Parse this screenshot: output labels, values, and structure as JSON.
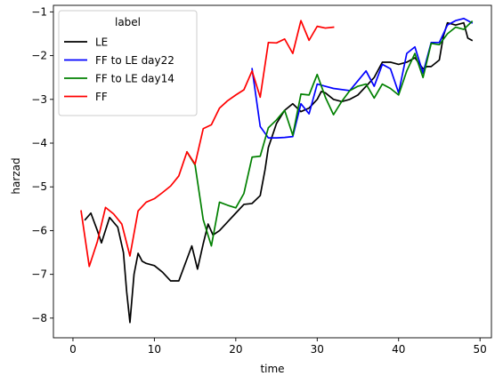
{
  "chart_data": {
    "type": "line",
    "title": "",
    "xlabel": "time",
    "ylabel": "harzad",
    "xlim": [
      -2.4,
      51.4
    ],
    "ylim": [
      -8.45,
      -0.85
    ],
    "xticks": [
      0,
      10,
      20,
      30,
      40,
      50
    ],
    "yticks": [
      -8,
      -7,
      -6,
      -5,
      -4,
      -3,
      -2,
      -1
    ],
    "grid": false,
    "legend": {
      "title": "label",
      "position": "top-left"
    },
    "series": [
      {
        "name": "LE",
        "color": "#000000",
        "x": [
          1.5,
          2.2,
          3.0,
          3.5,
          4.5,
          5.5,
          6.2,
          6.6,
          7.0,
          7.5,
          8.0,
          8.5,
          9.0,
          10.0,
          11.0,
          12.0,
          13.0,
          14.2,
          14.6,
          15.3,
          16.0,
          16.6,
          17.2,
          18.0,
          19.0,
          20.0,
          21.0,
          22.0,
          23.0,
          23.6,
          24.0,
          25.0,
          26.0,
          27.0,
          28.0,
          29.0,
          30.0,
          30.5,
          31.0,
          32.0,
          33.0,
          34.0,
          35.0,
          36.0,
          37.0,
          38.0,
          39.0,
          40.0,
          41.0,
          42.0,
          43.0,
          43.5,
          44.0,
          45.0,
          45.5,
          46.0,
          47.0,
          48.0,
          48.5,
          49.0
        ],
        "y": [
          -5.75,
          -5.6,
          -6.0,
          -6.28,
          -5.7,
          -5.92,
          -6.5,
          -7.4,
          -8.1,
          -7.0,
          -6.52,
          -6.7,
          -6.75,
          -6.8,
          -6.95,
          -7.15,
          -7.15,
          -6.55,
          -6.35,
          -6.88,
          -6.3,
          -5.85,
          -6.1,
          -6.0,
          -5.8,
          -5.6,
          -5.4,
          -5.38,
          -5.2,
          -4.6,
          -4.1,
          -3.55,
          -3.25,
          -3.1,
          -3.28,
          -3.2,
          -3.0,
          -2.82,
          -2.85,
          -3.0,
          -3.05,
          -3.0,
          -2.9,
          -2.7,
          -2.5,
          -2.15,
          -2.15,
          -2.2,
          -2.15,
          -2.05,
          -2.3,
          -2.25,
          -2.25,
          -2.1,
          -1.55,
          -1.25,
          -1.3,
          -1.25,
          -1.6,
          -1.65
        ]
      },
      {
        "name": "FF to LE day22",
        "color": "#0000ff",
        "x": [
          22.0,
          23.0,
          24.0,
          25.0,
          26.0,
          27.0,
          28.0,
          29.0,
          30.0,
          31.0,
          32.0,
          34.0,
          36.0,
          37.0,
          38.0,
          39.0,
          40.0,
          41.0,
          42.0,
          43.0,
          44.0,
          45.0,
          46.0,
          47.0,
          48.0,
          49.0
        ],
        "y": [
          -2.3,
          -3.62,
          -3.88,
          -3.88,
          -3.87,
          -3.85,
          -3.1,
          -3.33,
          -2.65,
          -2.7,
          -2.75,
          -2.8,
          -2.35,
          -2.7,
          -2.2,
          -2.3,
          -2.85,
          -1.95,
          -1.8,
          -2.4,
          -1.7,
          -1.7,
          -1.3,
          -1.2,
          -1.15,
          -1.25
        ]
      },
      {
        "name": "FF to LE day14",
        "color": "#008000",
        "x": [
          14.0,
          15.0,
          16.0,
          16.5,
          17.0,
          18.0,
          19.0,
          20.0,
          21.0,
          22.0,
          23.0,
          24.0,
          25.0,
          26.0,
          27.0,
          28.0,
          29.0,
          30.0,
          31.0,
          32.0,
          33.0,
          34.0,
          35.0,
          36.0,
          37.0,
          38.0,
          39.0,
          40.0,
          41.0,
          42.0,
          43.0,
          44.0,
          45.0,
          46.0,
          47.0,
          48.0,
          49.0
        ],
        "y": [
          -4.2,
          -4.5,
          -5.75,
          -6.05,
          -6.35,
          -5.35,
          -5.42,
          -5.48,
          -5.15,
          -4.32,
          -4.3,
          -3.65,
          -3.47,
          -3.25,
          -3.82,
          -2.88,
          -2.9,
          -2.43,
          -2.95,
          -3.35,
          -3.05,
          -2.8,
          -2.7,
          -2.65,
          -2.97,
          -2.65,
          -2.75,
          -2.9,
          -2.35,
          -1.95,
          -2.5,
          -1.72,
          -1.75,
          -1.5,
          -1.35,
          -1.4,
          -1.22
        ]
      },
      {
        "name": "FF",
        "color": "#ff0000",
        "x": [
          1.0,
          2.0,
          3.0,
          4.0,
          5.0,
          6.0,
          7.0,
          8.0,
          9.0,
          10.0,
          11.0,
          12.0,
          13.0,
          14.0,
          15.0,
          16.0,
          17.0,
          18.0,
          19.0,
          20.0,
          21.0,
          22.0,
          23.0,
          24.0,
          25.0,
          26.0,
          27.0,
          28.0,
          29.0,
          30.0,
          31.0,
          32.0
        ],
        "y": [
          -5.55,
          -6.82,
          -6.25,
          -5.47,
          -5.62,
          -5.85,
          -6.58,
          -5.55,
          -5.35,
          -5.27,
          -5.13,
          -4.98,
          -4.75,
          -4.2,
          -4.48,
          -3.67,
          -3.58,
          -3.2,
          -3.03,
          -2.9,
          -2.78,
          -2.35,
          -2.95,
          -1.7,
          -1.71,
          -1.62,
          -1.95,
          -1.2,
          -1.65,
          -1.33,
          -1.37,
          -1.35
        ]
      }
    ]
  }
}
